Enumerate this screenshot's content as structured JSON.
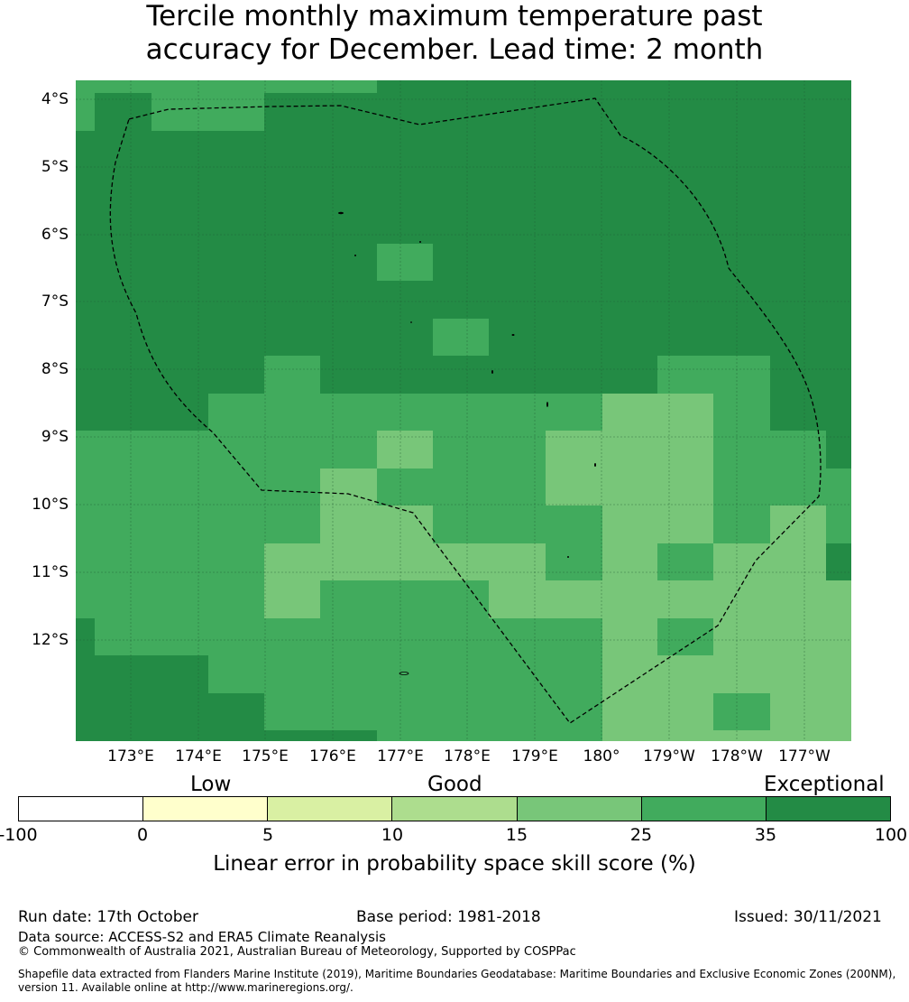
{
  "title": {
    "line1": "Tercile monthly maximum temperature past",
    "line2": "accuracy for December. Lead time: 2 month"
  },
  "map": {
    "lat_labels": [
      "4°S",
      "5°S",
      "6°S",
      "7°S",
      "8°S",
      "9°S",
      "10°S",
      "11°S",
      "12°S"
    ],
    "lon_labels": [
      "173°E",
      "174°E",
      "175°E",
      "176°E",
      "177°E",
      "178°E",
      "179°E",
      "180°",
      "179°W",
      "178°W",
      "177°W"
    ],
    "colors": {
      "c35": "#238b45",
      "c25": "#41ab5d",
      "c15": "#78c679",
      "water_line": "#000000"
    }
  },
  "colorbar": {
    "categories": [
      "Low",
      "Good",
      "Exceptional"
    ],
    "ticks": [
      "-100",
      "0",
      "5",
      "10",
      "15",
      "25",
      "35",
      "100"
    ],
    "colors": [
      "#ffffff",
      "#ffffcc",
      "#d9f0a3",
      "#addd8e",
      "#78c679",
      "#41ab5d",
      "#238b45"
    ],
    "title": "Linear error in probability space skill score (%)"
  },
  "footer": {
    "run_date": "Run date: 17th October",
    "base_period": "Base period: 1981-2018",
    "issued": "Issued: 30/11/2021",
    "data_source": "Data source: ACCESS-S2 and ERA5 Climate Reanalysis",
    "copyright": "© Commonwealth of Australia 2021, Australian Bureau of Meteorology, Supported by COSPPac",
    "shapefile_line1": "Shapefile data extracted from Flanders Marine Institute (2019), Maritime Boundaries Geodatabase: Maritime Boundaries and Exclusive Economic Zones (200NM),",
    "shapefile_line2": "version 11. Available online at http://www.marineregions.org/."
  }
}
